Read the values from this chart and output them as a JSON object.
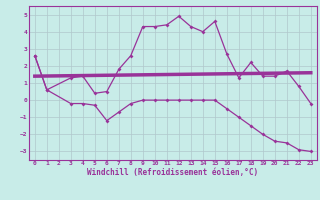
{
  "xlabel": "Windchill (Refroidissement éolien,°C)",
  "bg_color": "#c8ece8",
  "grid_color": "#b0c8cc",
  "line_color": "#993399",
  "xlim": [
    -0.5,
    23.5
  ],
  "ylim": [
    -3.5,
    5.5
  ],
  "yticks": [
    -3,
    -2,
    -1,
    0,
    1,
    2,
    3,
    4,
    5
  ],
  "xticks": [
    0,
    1,
    2,
    3,
    4,
    5,
    6,
    7,
    8,
    9,
    10,
    11,
    12,
    13,
    14,
    15,
    16,
    17,
    18,
    19,
    20,
    21,
    22,
    23
  ],
  "series1_x": [
    0,
    1,
    3,
    4,
    5,
    6,
    7,
    8,
    9,
    10,
    11,
    12,
    13,
    14,
    15,
    16,
    17,
    18,
    19,
    20,
    21,
    22,
    23
  ],
  "series1_y": [
    2.6,
    0.6,
    1.3,
    1.4,
    0.4,
    0.5,
    1.8,
    2.6,
    4.3,
    4.3,
    4.4,
    4.9,
    4.3,
    4.0,
    4.6,
    2.7,
    1.3,
    2.2,
    1.4,
    1.4,
    1.7,
    0.8,
    -0.2
  ],
  "series2_x": [
    0,
    23
  ],
  "series2_y": [
    1.4,
    1.6
  ],
  "series3_x": [
    0,
    1,
    3,
    4,
    5,
    6,
    7,
    8,
    9,
    10,
    11,
    12,
    13,
    14,
    15,
    16,
    17,
    18,
    19,
    20,
    21,
    22,
    23
  ],
  "series3_y": [
    2.6,
    0.6,
    -0.2,
    -0.2,
    -0.3,
    -1.2,
    -0.7,
    -0.2,
    0.0,
    0.0,
    0.0,
    0.0,
    0.0,
    0.0,
    0.0,
    -0.5,
    -1.0,
    -1.5,
    -2.0,
    -2.4,
    -2.5,
    -2.9,
    -3.0
  ]
}
